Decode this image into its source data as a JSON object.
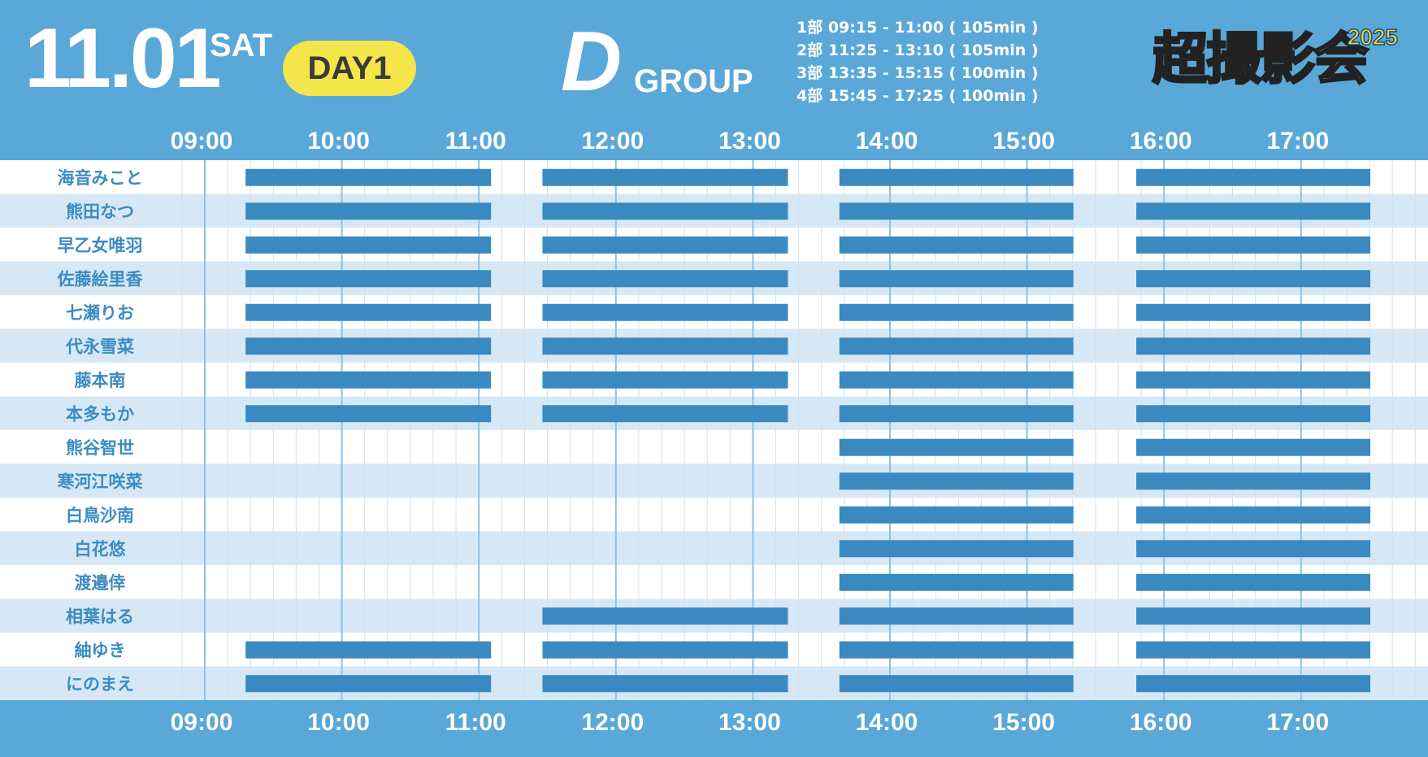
{
  "header": {
    "date": "11.01",
    "day_of_week": "SAT",
    "day_badge": "DAY1",
    "group_letter": "D",
    "group_word": "GROUP",
    "sessions": [
      "1部 09:15 - 11:00 ( 105min )",
      "2部 11:25 - 13:10 ( 105min )",
      "3部 13:35 - 15:15 ( 100min )",
      "4部 15:45 - 17:25 ( 100min )"
    ],
    "logo_text": "超撮影会",
    "logo_year": "2025"
  },
  "colors": {
    "frame": "#5aa8d8",
    "row_alt": "#d6e8f5",
    "row_plain": "#ffffff",
    "bar": "#3a8ac1",
    "badge": "#f4e54a"
  },
  "chart_data": {
    "type": "gantt",
    "x_ticks": [
      "09:00",
      "10:00",
      "11:00",
      "12:00",
      "13:00",
      "14:00",
      "15:00",
      "16:00",
      "17:00"
    ],
    "sessions": [
      {
        "start": "09:15",
        "end": "11:00"
      },
      {
        "start": "11:25",
        "end": "13:10"
      },
      {
        "start": "13:35",
        "end": "15:15"
      },
      {
        "start": "15:45",
        "end": "17:25"
      }
    ],
    "members": [
      {
        "name": "海音みこと",
        "sessions": [
          1,
          2,
          3,
          4
        ]
      },
      {
        "name": "熊田なつ",
        "sessions": [
          1,
          2,
          3,
          4
        ]
      },
      {
        "name": "早乙女唯羽",
        "sessions": [
          1,
          2,
          3,
          4
        ]
      },
      {
        "name": "佐藤絵里香",
        "sessions": [
          1,
          2,
          3,
          4
        ]
      },
      {
        "name": "七瀬りお",
        "sessions": [
          1,
          2,
          3,
          4
        ]
      },
      {
        "name": "代永雪菜",
        "sessions": [
          1,
          2,
          3,
          4
        ]
      },
      {
        "name": "藤本南",
        "sessions": [
          1,
          2,
          3,
          4
        ]
      },
      {
        "name": "本多もか",
        "sessions": [
          1,
          2,
          3,
          4
        ]
      },
      {
        "name": "熊谷智世",
        "sessions": [
          3,
          4
        ]
      },
      {
        "name": "寒河江咲菜",
        "sessions": [
          3,
          4
        ]
      },
      {
        "name": "白鳥沙南",
        "sessions": [
          3,
          4
        ]
      },
      {
        "name": "白花悠",
        "sessions": [
          3,
          4
        ]
      },
      {
        "name": "渡邉倖",
        "sessions": [
          3,
          4
        ]
      },
      {
        "name": "相葉はる",
        "sessions": [
          2,
          3,
          4
        ]
      },
      {
        "name": "紬ゆき",
        "sessions": [
          1,
          2,
          3,
          4
        ]
      },
      {
        "name": "にのまえ",
        "sessions": [
          1,
          2,
          3,
          4
        ]
      }
    ]
  }
}
